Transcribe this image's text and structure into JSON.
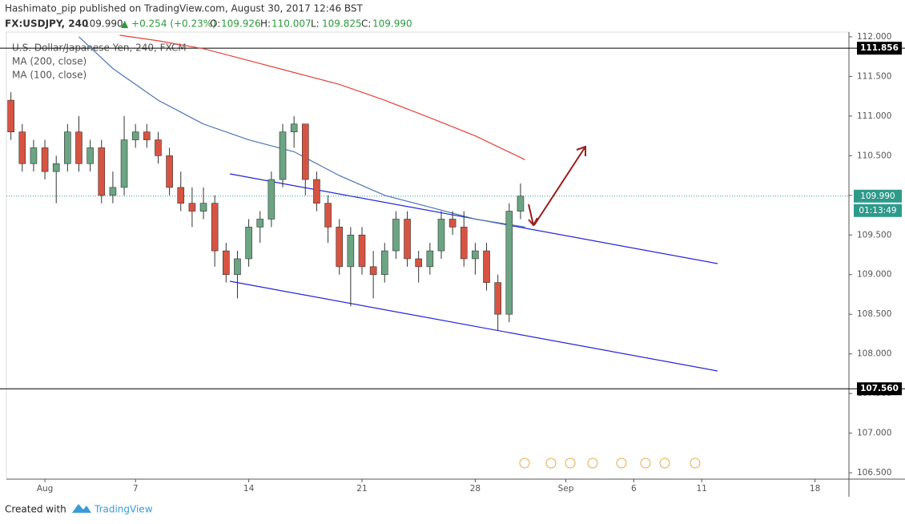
{
  "header": {
    "line1": "Hashimato_pip published on TradingView.com, August 30, 2017 12:46 BST",
    "symbol": "FX:USDJPY, 240",
    "last": "109.990",
    "change": "▲ +0.254 (+0.23%)",
    "ohlc": [
      {
        "key": "O:",
        "val": "109.926"
      },
      {
        "key": "H:",
        "val": "110.007"
      },
      {
        "key": "L:",
        "val": "109.825"
      },
      {
        "key": "C:",
        "val": "109.990"
      }
    ]
  },
  "footer": {
    "created": "Created with",
    "brand": "TradingView"
  },
  "chart_data": {
    "type": "candlestick",
    "legend": [
      "U.S. Dollar/Japanese Yen, 240, FXCM"
    ],
    "up_color": "#6ba583",
    "down_color": "#d75442",
    "xlim": [
      -1.7,
      35.5
    ],
    "ylim": [
      106.42,
      112.06
    ],
    "xticks": [
      {
        "value": 0,
        "label": "Aug"
      },
      {
        "value": 4,
        "label": "7"
      },
      {
        "value": 9,
        "label": "14"
      },
      {
        "value": 14,
        "label": "21"
      },
      {
        "value": 19,
        "label": "28"
      },
      {
        "value": 23,
        "label": "Sep"
      },
      {
        "value": 26,
        "label": "6"
      },
      {
        "value": 29,
        "label": "11"
      },
      {
        "value": 34,
        "label": "18"
      }
    ],
    "yticks": [
      {
        "value": 106.5,
        "label": "106.500"
      },
      {
        "value": 107,
        "label": "107.000"
      },
      {
        "value": 107.5,
        "label": "107.500"
      },
      {
        "value": 108,
        "label": "108.000"
      },
      {
        "value": 108.5,
        "label": "108.500"
      },
      {
        "value": 109,
        "label": "109.000"
      },
      {
        "value": 109.5,
        "label": "109.500"
      },
      {
        "value": 110,
        "label": "110.000"
      },
      {
        "value": 110.5,
        "label": "110.500"
      },
      {
        "value": 111,
        "label": "111.000"
      },
      {
        "value": 111.5,
        "label": "111.500"
      },
      {
        "value": 112,
        "label": "112.000"
      }
    ],
    "hlines": [
      {
        "value": 111.856,
        "label": "111.856"
      },
      {
        "value": 107.56,
        "label": "107.560"
      }
    ],
    "last_price": {
      "value": 109.99,
      "label": "109.990",
      "countdown": "01:13:49",
      "color": "#2e9a8a"
    },
    "candles": {
      "x": [
        -1.5,
        -1,
        -0.5,
        0,
        0.5,
        1,
        1.5,
        2,
        2.5,
        3,
        3.5,
        4,
        4.5,
        5,
        5.5,
        6,
        6.5,
        7,
        7.5,
        8,
        8.5,
        9,
        9.5,
        10,
        10.5,
        11,
        11.5,
        12,
        12.5,
        13,
        13.5,
        14,
        14.5,
        15,
        15.5,
        16,
        16.5,
        17,
        17.5,
        18,
        18.5,
        19,
        19.5,
        20,
        20.5,
        21
      ],
      "open": [
        111.2,
        110.8,
        110.4,
        110.6,
        110.3,
        110.4,
        110.8,
        110.4,
        110.6,
        110.0,
        110.1,
        110.7,
        110.8,
        110.7,
        110.5,
        110.1,
        109.9,
        109.8,
        109.9,
        109.3,
        109.0,
        109.2,
        109.6,
        109.7,
        110.2,
        110.8,
        110.9,
        110.2,
        109.9,
        109.6,
        109.1,
        109.5,
        109.1,
        109.0,
        109.3,
        109.7,
        109.2,
        109.1,
        109.3,
        109.7,
        109.6,
        109.2,
        109.3,
        108.9,
        108.5,
        109.8
      ],
      "high": [
        111.3,
        110.9,
        110.7,
        110.7,
        110.5,
        110.9,
        111.0,
        110.7,
        110.7,
        110.3,
        111.0,
        110.9,
        110.9,
        110.8,
        110.6,
        110.3,
        110.1,
        110.1,
        110.0,
        109.4,
        109.3,
        109.7,
        109.8,
        110.3,
        110.9,
        111.0,
        110.9,
        110.3,
        110.0,
        109.7,
        109.6,
        109.6,
        109.3,
        109.4,
        109.8,
        109.8,
        109.3,
        109.4,
        109.8,
        109.8,
        109.8,
        109.4,
        109.4,
        109.0,
        109.9,
        110.15
      ],
      "low": [
        110.7,
        110.3,
        110.3,
        110.2,
        109.9,
        110.3,
        110.3,
        110.3,
        109.9,
        109.9,
        110.0,
        110.6,
        110.6,
        110.4,
        110.0,
        109.8,
        109.6,
        109.7,
        109.1,
        108.9,
        108.7,
        109.1,
        109.4,
        109.6,
        110.1,
        110.6,
        110.0,
        109.8,
        109.4,
        109.0,
        108.6,
        109.0,
        108.7,
        108.9,
        109.2,
        109.1,
        108.9,
        109.0,
        109.2,
        109.5,
        109.1,
        109.0,
        108.8,
        108.3,
        108.4,
        109.7
      ],
      "close": [
        110.8,
        110.4,
        110.6,
        110.3,
        110.4,
        110.8,
        110.4,
        110.6,
        110.0,
        110.1,
        110.7,
        110.8,
        110.7,
        110.5,
        110.1,
        109.9,
        109.8,
        109.9,
        109.3,
        109.0,
        109.2,
        109.6,
        109.7,
        110.2,
        110.8,
        110.9,
        110.2,
        109.9,
        109.6,
        109.1,
        109.5,
        109.1,
        109.0,
        109.3,
        109.7,
        109.2,
        109.1,
        109.3,
        109.7,
        109.6,
        109.2,
        109.3,
        108.9,
        108.5,
        109.8,
        109.99
      ]
    },
    "series": [
      {
        "name": "MA (200, close)",
        "color": "#e2423a",
        "x": [
          3.3,
          5,
          7,
          9,
          11,
          13,
          15,
          17,
          19,
          21.2
        ],
        "values": [
          112.02,
          111.95,
          111.85,
          111.7,
          111.55,
          111.4,
          111.2,
          110.98,
          110.75,
          110.45
        ]
      },
      {
        "name": "MA (100, close)",
        "color": "#4a76b4",
        "x": [
          1.5,
          3,
          5,
          7,
          9,
          11,
          13,
          15,
          17,
          19,
          21.2
        ],
        "values": [
          112.0,
          111.6,
          111.2,
          110.9,
          110.7,
          110.55,
          110.25,
          110.0,
          109.85,
          109.7,
          109.6
        ]
      }
    ]
  }
}
